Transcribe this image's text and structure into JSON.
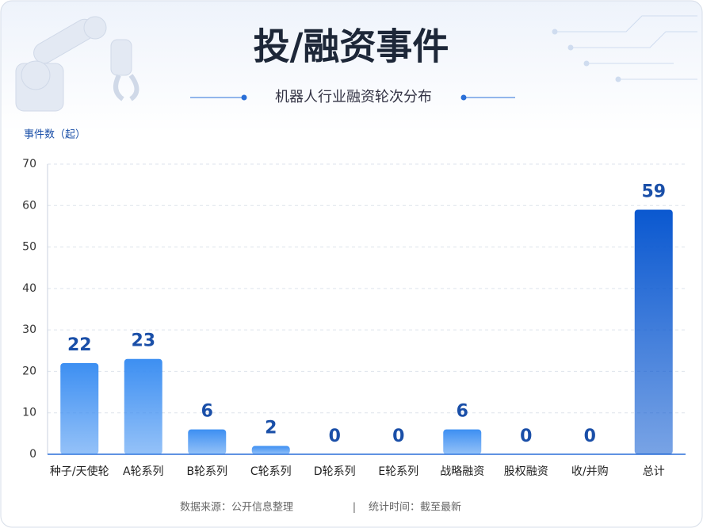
{
  "chart_data": {
    "type": "bar",
    "title": "投/融资事件",
    "subtitle": "机器人行业融资轮次分布",
    "y_label": "事件数（起）",
    "categories": [
      "种子/天使轮",
      "A轮系列",
      "B轮系列",
      "C轮系列",
      "D轮系列",
      "E轮系列",
      "战略融资",
      "股权融资",
      "收/并购",
      "总计"
    ],
    "values": [
      22,
      23,
      6,
      2,
      0,
      0,
      6,
      0,
      0,
      59
    ],
    "colors": [
      "#3d8ff2",
      "#3d8ff2",
      "#3d8ff2",
      "#3d8ff2",
      "#3d8ff2",
      "#3d8ff2",
      "#3d8ff2",
      "#3d8ff2",
      "#3d8ff2",
      "#0a58d0"
    ],
    "ylim": [
      0,
      70
    ],
    "yticks": [
      0,
      10,
      20,
      30,
      40,
      50,
      60,
      70
    ],
    "grid": true,
    "footer": [
      "数据来源：公开信息整理",
      "|",
      "统计时间：截至最新"
    ]
  }
}
